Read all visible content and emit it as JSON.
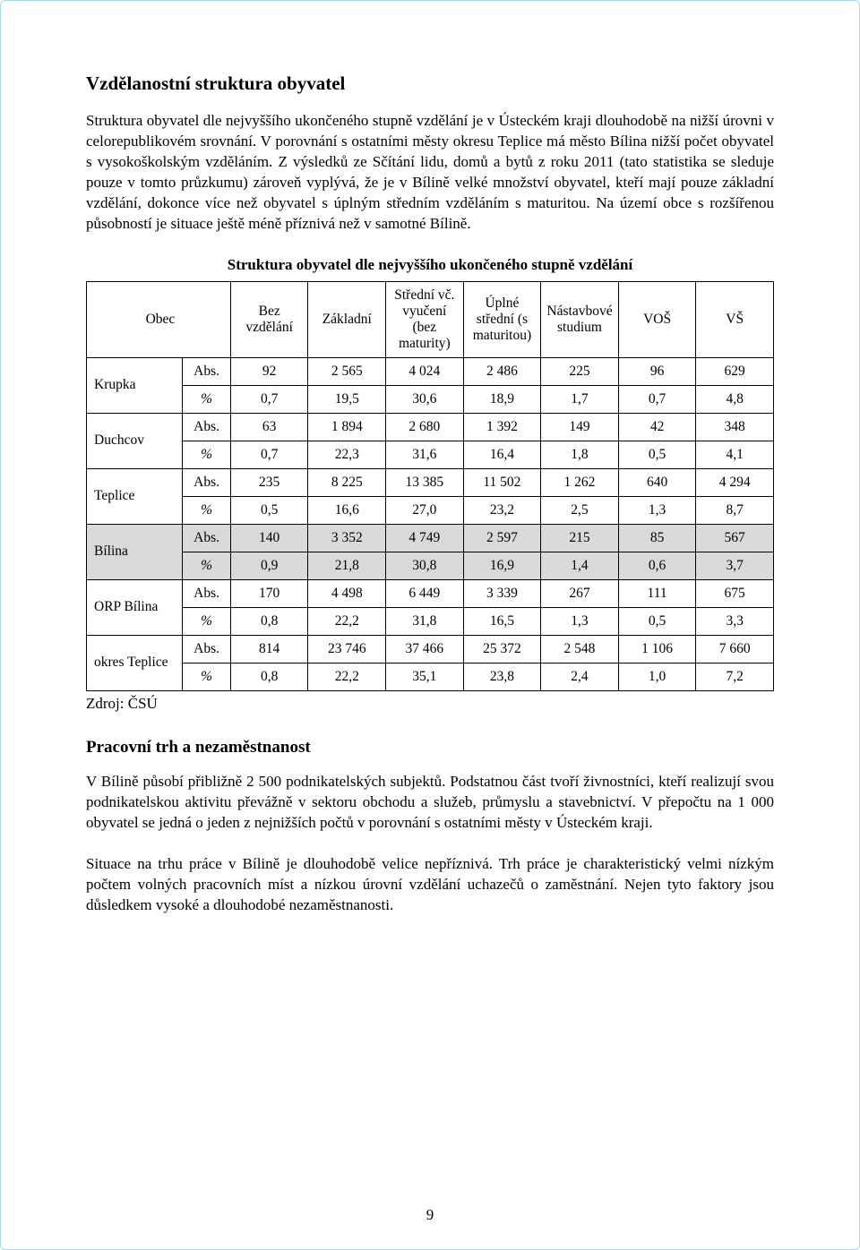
{
  "heading1": "Vzdělanostní struktura obyvatel",
  "para1": "Struktura obyvatel dle nejvyššího ukončeného stupně vzdělání je v Ústeckém kraji dlouhodobě na nižší úrovni v celorepublikovém srovnání. V porovnání s ostatními městy okresu Teplice má město Bílina nižší počet obyvatel s vysokoškolským vzděláním. Z výsledků ze Sčítání lidu, domů a bytů z roku 2011 (tato statistika se sleduje pouze v tomto průzkumu) zároveň vyplývá, že je v Bílině velké množství obyvatel, kteří mají pouze základní vzdělání, dokonce více než obyvatel s úplným středním vzděláním s maturitou. Na území obce s rozšířenou působností je situace ještě méně příznivá než v samotné Bílině.",
  "table_title": "Struktura obyvatel dle nejvyššího ukončeného stupně vzdělání",
  "columns": {
    "obec": "Obec",
    "bez": "Bez vzdělání",
    "zakladni": "Základní",
    "stredni_bez": "Střední vč. vyučení (bez maturity)",
    "uplne": "Úplné střední (s maturitou)",
    "nastav": "Nástavbové studium",
    "vos": "VOŠ",
    "vs": "VŠ"
  },
  "units": {
    "abs": "Abs.",
    "pct": "%"
  },
  "rows": [
    {
      "obec": "Krupka",
      "highlight": false,
      "abs": [
        "92",
        "2 565",
        "4 024",
        "2 486",
        "225",
        "96",
        "629"
      ],
      "pct": [
        "0,7",
        "19,5",
        "30,6",
        "18,9",
        "1,7",
        "0,7",
        "4,8"
      ]
    },
    {
      "obec": "Duchcov",
      "highlight": false,
      "abs": [
        "63",
        "1 894",
        "2 680",
        "1 392",
        "149",
        "42",
        "348"
      ],
      "pct": [
        "0,7",
        "22,3",
        "31,6",
        "16,4",
        "1,8",
        "0,5",
        "4,1"
      ]
    },
    {
      "obec": "Teplice",
      "highlight": false,
      "abs": [
        "235",
        "8 225",
        "13 385",
        "11 502",
        "1 262",
        "640",
        "4 294"
      ],
      "pct": [
        "0,5",
        "16,6",
        "27,0",
        "23,2",
        "2,5",
        "1,3",
        "8,7"
      ]
    },
    {
      "obec": "Bílina",
      "highlight": true,
      "abs": [
        "140",
        "3 352",
        "4 749",
        "2 597",
        "215",
        "85",
        "567"
      ],
      "pct": [
        "0,9",
        "21,8",
        "30,8",
        "16,9",
        "1,4",
        "0,6",
        "3,7"
      ]
    },
    {
      "obec": "ORP Bílina",
      "highlight": false,
      "abs": [
        "170",
        "4 498",
        "6 449",
        "3 339",
        "267",
        "111",
        "675"
      ],
      "pct": [
        "0,8",
        "22,2",
        "31,8",
        "16,5",
        "1,3",
        "0,5",
        "3,3"
      ]
    },
    {
      "obec": "okres Teplice",
      "highlight": false,
      "abs": [
        "814",
        "23 746",
        "37 466",
        "25 372",
        "2 548",
        "1 106",
        "7 660"
      ],
      "pct": [
        "0,8",
        "22,2",
        "35,1",
        "23,8",
        "2,4",
        "1,0",
        "7,2"
      ]
    }
  ],
  "source": "Zdroj: ČSÚ",
  "heading2": "Pracovní trh a nezaměstnanost",
  "para2": "V Bílině působí přibližně 2 500 podnikatelských subjektů. Podstatnou část tvoří živnostníci, kteří realizují svou podnikatelskou aktivitu převážně v sektoru obchodu a služeb, průmyslu a stavebnictví. V přepočtu na 1 000 obyvatel se jedná o jeden z nejnižších počtů v porovnání s ostatními městy v Ústeckém kraji.",
  "para3": "Situace na trhu práce v Bílině je dlouhodobě velice nepříznivá. Trh práce je charakteristický velmi nízkým počtem volných pracovních míst a nízkou úrovní vzdělání uchazečů o zaměstnání. Nejen tyto faktory jsou důsledkem vysoké a dlouhodobé nezaměstnanosti.",
  "page_number": "9",
  "colors": {
    "highlight_bg": "#d9d9d9",
    "border": "#000000",
    "page_border": "#a5d8e8"
  }
}
